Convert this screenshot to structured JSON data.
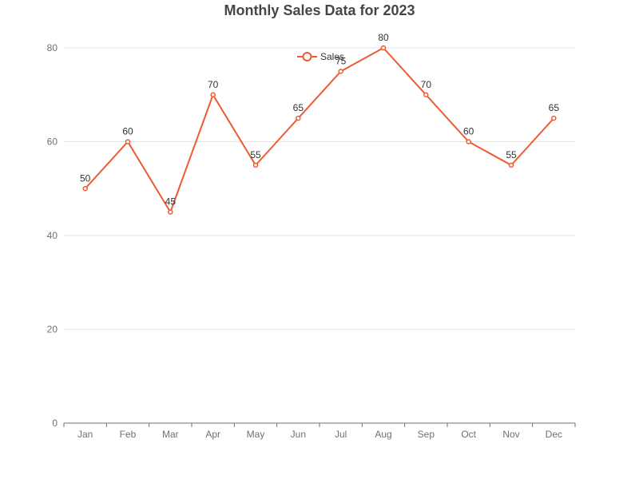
{
  "chart_data": {
    "type": "line",
    "title": "Monthly Sales Data for 2023",
    "categories": [
      "Jan",
      "Feb",
      "Mar",
      "Apr",
      "May",
      "Jun",
      "Jul",
      "Aug",
      "Sep",
      "Oct",
      "Nov",
      "Dec"
    ],
    "series": [
      {
        "name": "Sales",
        "color": "#ee5a2f",
        "values": [
          50,
          60,
          45,
          70,
          55,
          65,
          75,
          80,
          70,
          60,
          55,
          65
        ]
      }
    ],
    "ylim": [
      0,
      80
    ],
    "yticks": [
      0,
      20,
      40,
      60,
      80
    ],
    "grid": true,
    "legend": "top-center",
    "data_labels": true
  }
}
